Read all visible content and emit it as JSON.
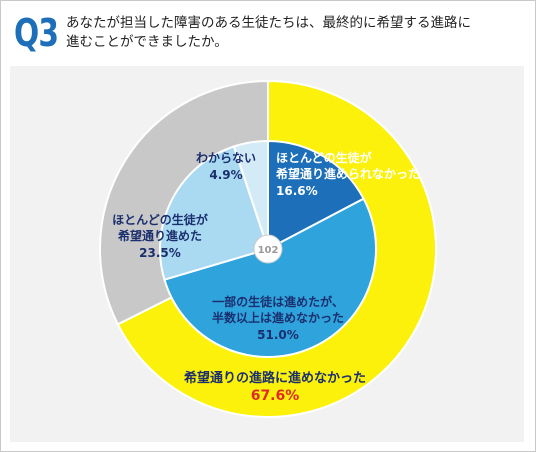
{
  "header": {
    "badge": "Q3",
    "question_line1": "あなたが担当した障害のある生徒たちは、最終的に希望する進路に",
    "question_line2": "進むことができましたか。"
  },
  "colors": {
    "outer_yellow": "#fbf10a",
    "outer_gray": "#c8c8c8",
    "inner_dark_blue": "#1c6fb8",
    "inner_mid_blue": "#2ea3dc",
    "inner_light_blue": "#a9daf2",
    "inner_pale_blue": "#d3ebf7",
    "label_navy": "#1b2f6e",
    "highlight_red": "#e02a2a",
    "panel_bg": "#f2f2f2"
  },
  "chart_data": {
    "type": "pie",
    "n_label": "102",
    "outer": [
      {
        "name": "希望通りの進路に進めなかった",
        "value": 67.6,
        "value_label": "67.6%"
      },
      {
        "name": "",
        "value": 32.4,
        "value_label": ""
      }
    ],
    "inner": [
      {
        "name_lines": [
          "ほとんどの生徒が",
          "希望通り進められなかった"
        ],
        "value": 16.6,
        "value_label": "16.6%"
      },
      {
        "name_lines": [
          "一部の生徒は進めたが、",
          "半数以上は進めなかった"
        ],
        "value": 51.0,
        "value_label": "51.0%"
      },
      {
        "name_lines": [
          "ほとんどの生徒が",
          "希望通り進めた"
        ],
        "value": 23.5,
        "value_label": "23.5%"
      },
      {
        "name_lines": [
          "わからない"
        ],
        "value": 4.9,
        "value_label": "4.9%"
      }
    ]
  }
}
